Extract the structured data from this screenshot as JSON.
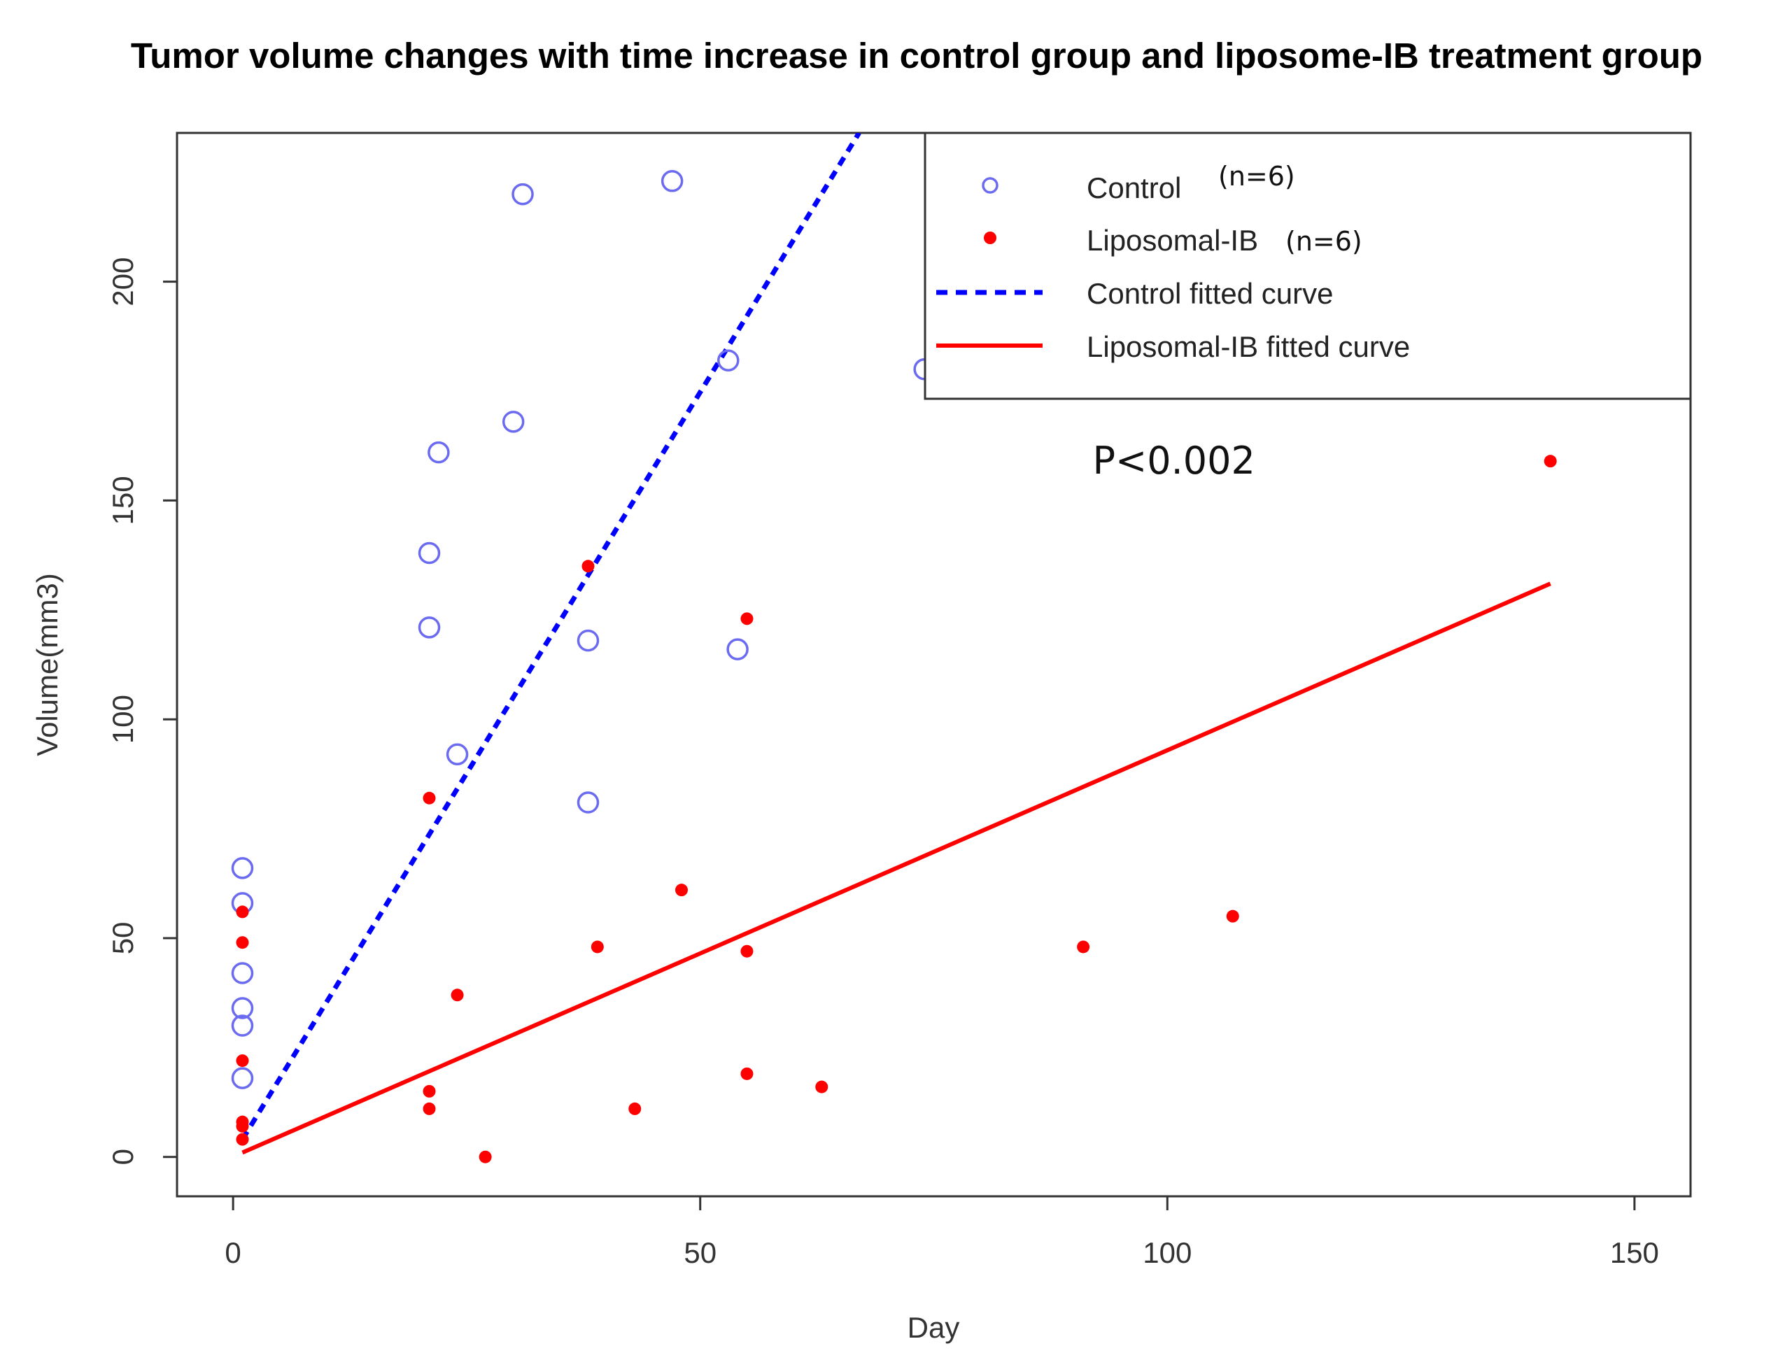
{
  "chart_data": {
    "type": "scatter",
    "title": "Tumor volume changes with time increase in control group and liposome-IB treatment group",
    "xlabel": "Day",
    "ylabel": "Volume(mm3)",
    "xlim": [
      -6,
      156
    ],
    "ylim": [
      -9,
      234
    ],
    "xticks": [
      0,
      50,
      100,
      150
    ],
    "yticks": [
      0,
      50,
      100,
      150,
      200
    ],
    "xtick_labels": [
      "0",
      "50",
      "100",
      "150"
    ],
    "ytick_labels": [
      "0",
      "50",
      "100",
      "150",
      "200"
    ],
    "legend_position": "top-right",
    "series": [
      {
        "name": "Control",
        "annotation": "(n=6)",
        "kind": "points",
        "marker": "open-circle",
        "color": "#6B6BF2",
        "points": [
          [
            1,
            66
          ],
          [
            1,
            58
          ],
          [
            1,
            42
          ],
          [
            1,
            34
          ],
          [
            1,
            30
          ],
          [
            1,
            18
          ],
          [
            22,
            161
          ],
          [
            21,
            138
          ],
          [
            21,
            121
          ],
          [
            24,
            92
          ],
          [
            30,
            168
          ],
          [
            31,
            220
          ],
          [
            38,
            118
          ],
          [
            38,
            81
          ],
          [
            47,
            223
          ],
          [
            53,
            182
          ],
          [
            54,
            116
          ],
          [
            74,
            180
          ]
        ]
      },
      {
        "name": "Liposomal-IB",
        "annotation": "(n=6)",
        "kind": "points",
        "marker": "filled-circle",
        "color": "#FF0000",
        "points": [
          [
            1,
            56
          ],
          [
            1,
            49
          ],
          [
            1,
            22
          ],
          [
            1,
            8
          ],
          [
            1,
            7
          ],
          [
            1,
            4
          ],
          [
            21,
            82
          ],
          [
            21,
            15
          ],
          [
            21,
            11
          ],
          [
            24,
            37
          ],
          [
            27,
            0
          ],
          [
            38,
            135
          ],
          [
            39,
            48
          ],
          [
            43,
            11
          ],
          [
            48,
            61
          ],
          [
            55,
            123
          ],
          [
            55,
            47
          ],
          [
            55,
            19
          ],
          [
            63,
            16
          ],
          [
            91,
            48
          ],
          [
            107,
            55
          ],
          [
            141,
            159
          ]
        ]
      },
      {
        "name": "Control fitted curve",
        "kind": "line",
        "style": "dotted",
        "color": "#0000FF",
        "points": [
          [
            1,
            4
          ],
          [
            67,
            234
          ]
        ]
      },
      {
        "name": "Liposomal-IB fitted curve",
        "kind": "line",
        "style": "solid",
        "color": "#FF0000",
        "points": [
          [
            1,
            1
          ],
          [
            141,
            131
          ]
        ]
      }
    ],
    "annotations": [
      {
        "text": "P<0.002",
        "x": 92,
        "y": 159
      }
    ]
  }
}
